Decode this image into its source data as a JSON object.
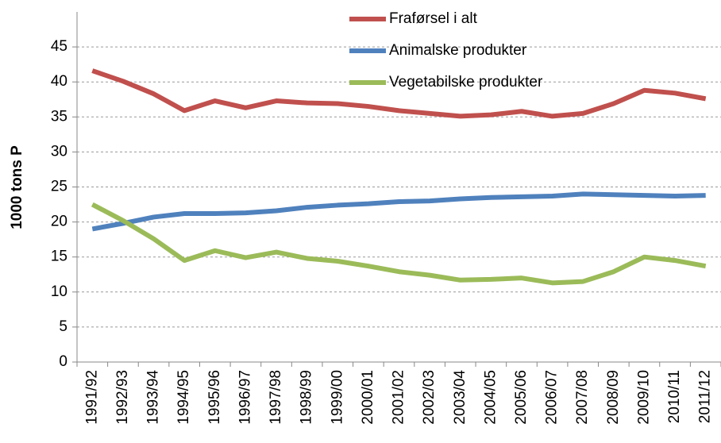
{
  "chart_data": {
    "type": "line",
    "y_label": "1000 tons P",
    "categories": [
      "1991/92",
      "1992/93",
      "1993/94",
      "1994/95",
      "1995/96",
      "1996/97",
      "1997/98",
      "1998/99",
      "1999/00",
      "2000/01",
      "2001/02",
      "2002/03",
      "2003/04",
      "2004/05",
      "2005/06",
      "2006/07",
      "2007/08",
      "2008/09",
      "2009/10",
      "2010/11",
      "2011/12"
    ],
    "series": [
      {
        "name": "Fraførsel i alt",
        "color": "#c0504d",
        "values": [
          41.6,
          40.1,
          38.3,
          35.9,
          37.3,
          36.3,
          37.3,
          37.0,
          36.9,
          36.5,
          35.9,
          35.5,
          35.1,
          35.3,
          35.8,
          35.1,
          35.5,
          36.9,
          38.8,
          38.4,
          37.6
        ]
      },
      {
        "name": "Animalske produkter",
        "color": "#4f81bd",
        "values": [
          19.0,
          19.8,
          20.7,
          21.2,
          21.2,
          21.3,
          21.6,
          22.1,
          22.4,
          22.6,
          22.9,
          23.0,
          23.3,
          23.5,
          23.6,
          23.7,
          24.0,
          23.9,
          23.8,
          23.7,
          23.8
        ]
      },
      {
        "name": "Vegetabilske produkter",
        "color": "#9bbb59",
        "values": [
          22.5,
          20.2,
          17.6,
          14.5,
          15.9,
          14.9,
          15.7,
          14.8,
          14.4,
          13.7,
          12.9,
          12.4,
          11.7,
          11.8,
          12.0,
          11.3,
          11.5,
          12.9,
          15.0,
          14.5,
          13.7
        ]
      }
    ],
    "ylim": [
      0,
      50
    ],
    "yticks": [
      0,
      5,
      10,
      15,
      20,
      25,
      30,
      35,
      40,
      45
    ],
    "grid": true,
    "legend": "top"
  }
}
